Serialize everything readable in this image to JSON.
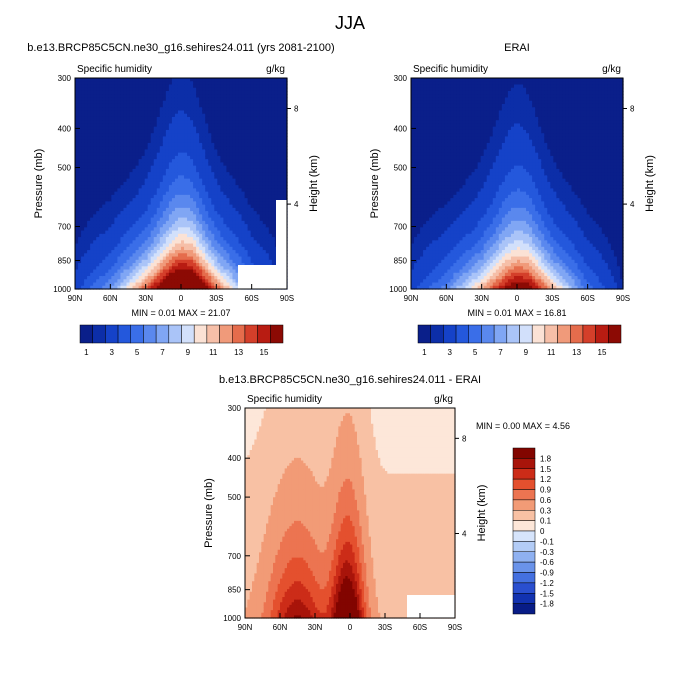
{
  "page": {
    "title": "JJA"
  },
  "chart_data": [
    {
      "type": "heatmap",
      "title": "b.e13.BRCP85C5CN.ne30_g16.sehires24.011 (yrs 2081-2100)",
      "left_string": "Specific humidity",
      "units": "g/kg",
      "xlabel": "",
      "ylabel": "Pressure (mb)",
      "ylabel_right": "Height (km)",
      "x_ticks": [
        "90N",
        "60N",
        "30N",
        "0",
        "30S",
        "60S",
        "90S"
      ],
      "y_ticks": [
        "300",
        "400",
        "500",
        "700",
        "850",
        "1000"
      ],
      "y_right_ticks": [
        "8",
        "4"
      ],
      "ylim": [
        1000,
        300
      ],
      "y_scale": "log",
      "min_max": "MIN =  0.01  MAX =  21.07",
      "min": 0.01,
      "max": 21.07,
      "legend": {
        "position": "bottom",
        "labels": [
          "1",
          "3",
          "5",
          "7",
          "9",
          "11",
          "13",
          "15"
        ]
      },
      "levels": [
        0.5,
        1,
        2,
        3,
        4,
        5,
        6,
        7,
        8,
        9,
        10,
        11,
        12,
        13,
        14,
        15
      ],
      "colors": [
        "#0a1f8a",
        "#0c2ea8",
        "#1542c8",
        "#2458dc",
        "#3a6ee8",
        "#5a88ee",
        "#80a6f4",
        "#aac4f8",
        "#d2e0fb",
        "#fbe2d5",
        "#f6bfa8",
        "#f09a7a",
        "#e56c4c",
        "#d43f2a",
        "#b81c12",
        "#8c0a04"
      ],
      "profile_x": [
        -90,
        -60,
        -30,
        -10,
        0,
        10,
        30,
        60,
        90
      ],
      "profile_surface": [
        1.5,
        5,
        12,
        18,
        20,
        19.5,
        12,
        4,
        0.5
      ]
    },
    {
      "type": "heatmap",
      "title": "ERAI",
      "left_string": "Specific humidity",
      "units": "g/kg",
      "xlabel": "",
      "ylabel": "Pressure (mb)",
      "ylabel_right": "Height (km)",
      "x_ticks": [
        "90N",
        "60N",
        "30N",
        "0",
        "30S",
        "60S",
        "90S"
      ],
      "y_ticks": [
        "300",
        "400",
        "500",
        "700",
        "850",
        "1000"
      ],
      "y_right_ticks": [
        "8",
        "4"
      ],
      "ylim": [
        1000,
        300
      ],
      "y_scale": "log",
      "min_max": "MIN =  0.01  MAX =  16.81",
      "min": 0.01,
      "max": 16.81,
      "legend": {
        "position": "bottom",
        "labels": [
          "1",
          "3",
          "5",
          "7",
          "9",
          "11",
          "13",
          "15"
        ]
      },
      "levels": [
        0.5,
        1,
        2,
        3,
        4,
        5,
        6,
        7,
        8,
        9,
        10,
        11,
        12,
        13,
        14,
        15
      ],
      "colors": [
        "#0a1f8a",
        "#0c2ea8",
        "#1542c8",
        "#2458dc",
        "#3a6ee8",
        "#5a88ee",
        "#80a6f4",
        "#aac4f8",
        "#d2e0fb",
        "#fbe2d5",
        "#f6bfa8",
        "#f09a7a",
        "#e56c4c",
        "#d43f2a",
        "#b81c12",
        "#8c0a04"
      ],
      "profile_x": [
        -90,
        -60,
        -30,
        -10,
        0,
        10,
        30,
        60,
        90
      ],
      "profile_surface": [
        1.5,
        4.5,
        10,
        14.5,
        16,
        15.5,
        10,
        3.5,
        0.5
      ]
    },
    {
      "type": "heatmap",
      "title": "b.e13.BRCP85C5CN.ne30_g16.sehires24.011 - ERAI",
      "left_string": "Specific humidity",
      "units": "g/kg",
      "xlabel": "",
      "ylabel": "Pressure (mb)",
      "ylabel_right": "Height (km)",
      "x_ticks": [
        "90N",
        "60N",
        "30N",
        "0",
        "30S",
        "60S",
        "90S"
      ],
      "y_ticks": [
        "300",
        "400",
        "500",
        "700",
        "850",
        "1000"
      ],
      "y_right_ticks": [
        "8",
        "4"
      ],
      "ylim": [
        1000,
        300
      ],
      "y_scale": "log",
      "min_max": "MIN =  0.00  MAX =  4.56",
      "min": 0.0,
      "max": 4.56,
      "legend": {
        "position": "right",
        "labels": [
          "1.8",
          "1.5",
          "1.2",
          "0.9",
          "0.6",
          "0.3",
          "0.1",
          "0",
          "-0.1",
          "-0.3",
          "-0.6",
          "-0.9",
          "-1.2",
          "-1.5",
          "-1.8"
        ]
      },
      "levels": [
        0.1,
        0.3,
        0.6,
        0.9,
        1.2,
        1.5,
        1.8
      ],
      "colors": [
        "#fde7d9",
        "#f8c1a4",
        "#f29b76",
        "#ec7451",
        "#e4502e",
        "#cc2c18",
        "#a8140a",
        "#820500"
      ],
      "legend_colors": [
        "#820500",
        "#a8140a",
        "#cc2c18",
        "#e4502e",
        "#ec7451",
        "#f29b76",
        "#f8c1a4",
        "#fde7d9",
        "#d6e4fb",
        "#b3ccf6",
        "#8fb1f1",
        "#6a93ea",
        "#4470e0",
        "#2a4fcf",
        "#1232b0",
        "#081c86"
      ]
    }
  ]
}
